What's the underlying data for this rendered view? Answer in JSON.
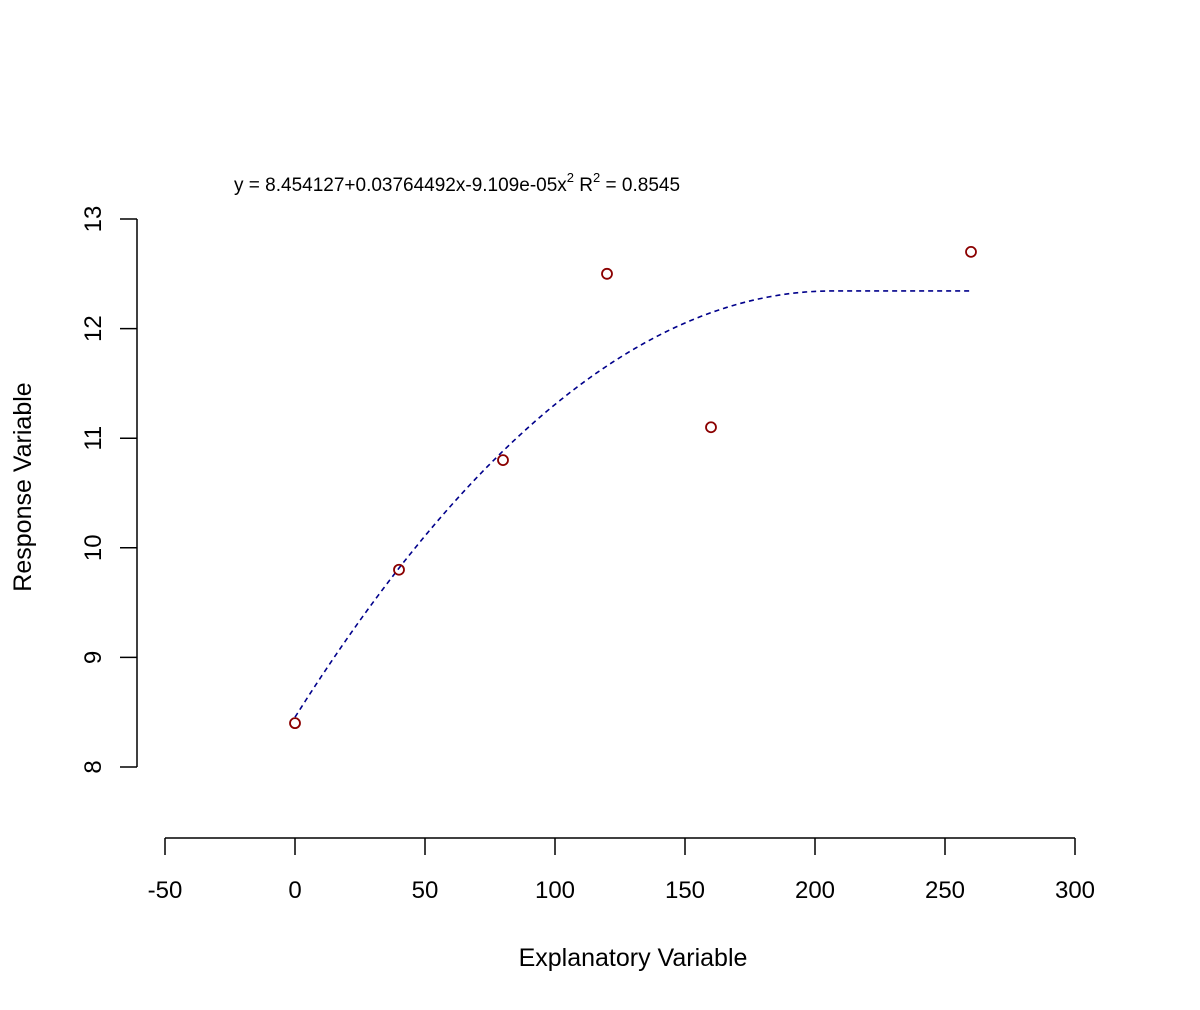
{
  "chart_data": {
    "type": "scatter",
    "equation": {
      "prefix": "y = 8.454127+0.03764492x-9.109e-05x",
      "exp1": "2",
      "mid": "  R",
      "exp2": "2",
      "suffix": " = 0.8545"
    },
    "xlabel": "Explanatory Variable",
    "ylabel": "Response Variable",
    "xlim": [
      -50,
      300
    ],
    "ylim": [
      8,
      13
    ],
    "xticks": [
      -50,
      0,
      50,
      100,
      150,
      200,
      250,
      300
    ],
    "yticks": [
      8,
      9,
      10,
      11,
      12,
      13
    ],
    "grid": false,
    "series": [
      {
        "kind": "points",
        "marker": "open-circle",
        "color": "#8b0000",
        "x": [
          0,
          40,
          80,
          120,
          160,
          260
        ],
        "y": [
          8.4,
          9.8,
          10.8,
          12.5,
          11.1,
          12.7
        ]
      },
      {
        "kind": "fit-line",
        "style": "dashed",
        "color": "#00008b",
        "coefficients": [
          8.454127,
          0.03764492,
          -9.109e-05
        ],
        "x_range": [
          0,
          260
        ],
        "plateau_after": 206.6
      }
    ]
  }
}
